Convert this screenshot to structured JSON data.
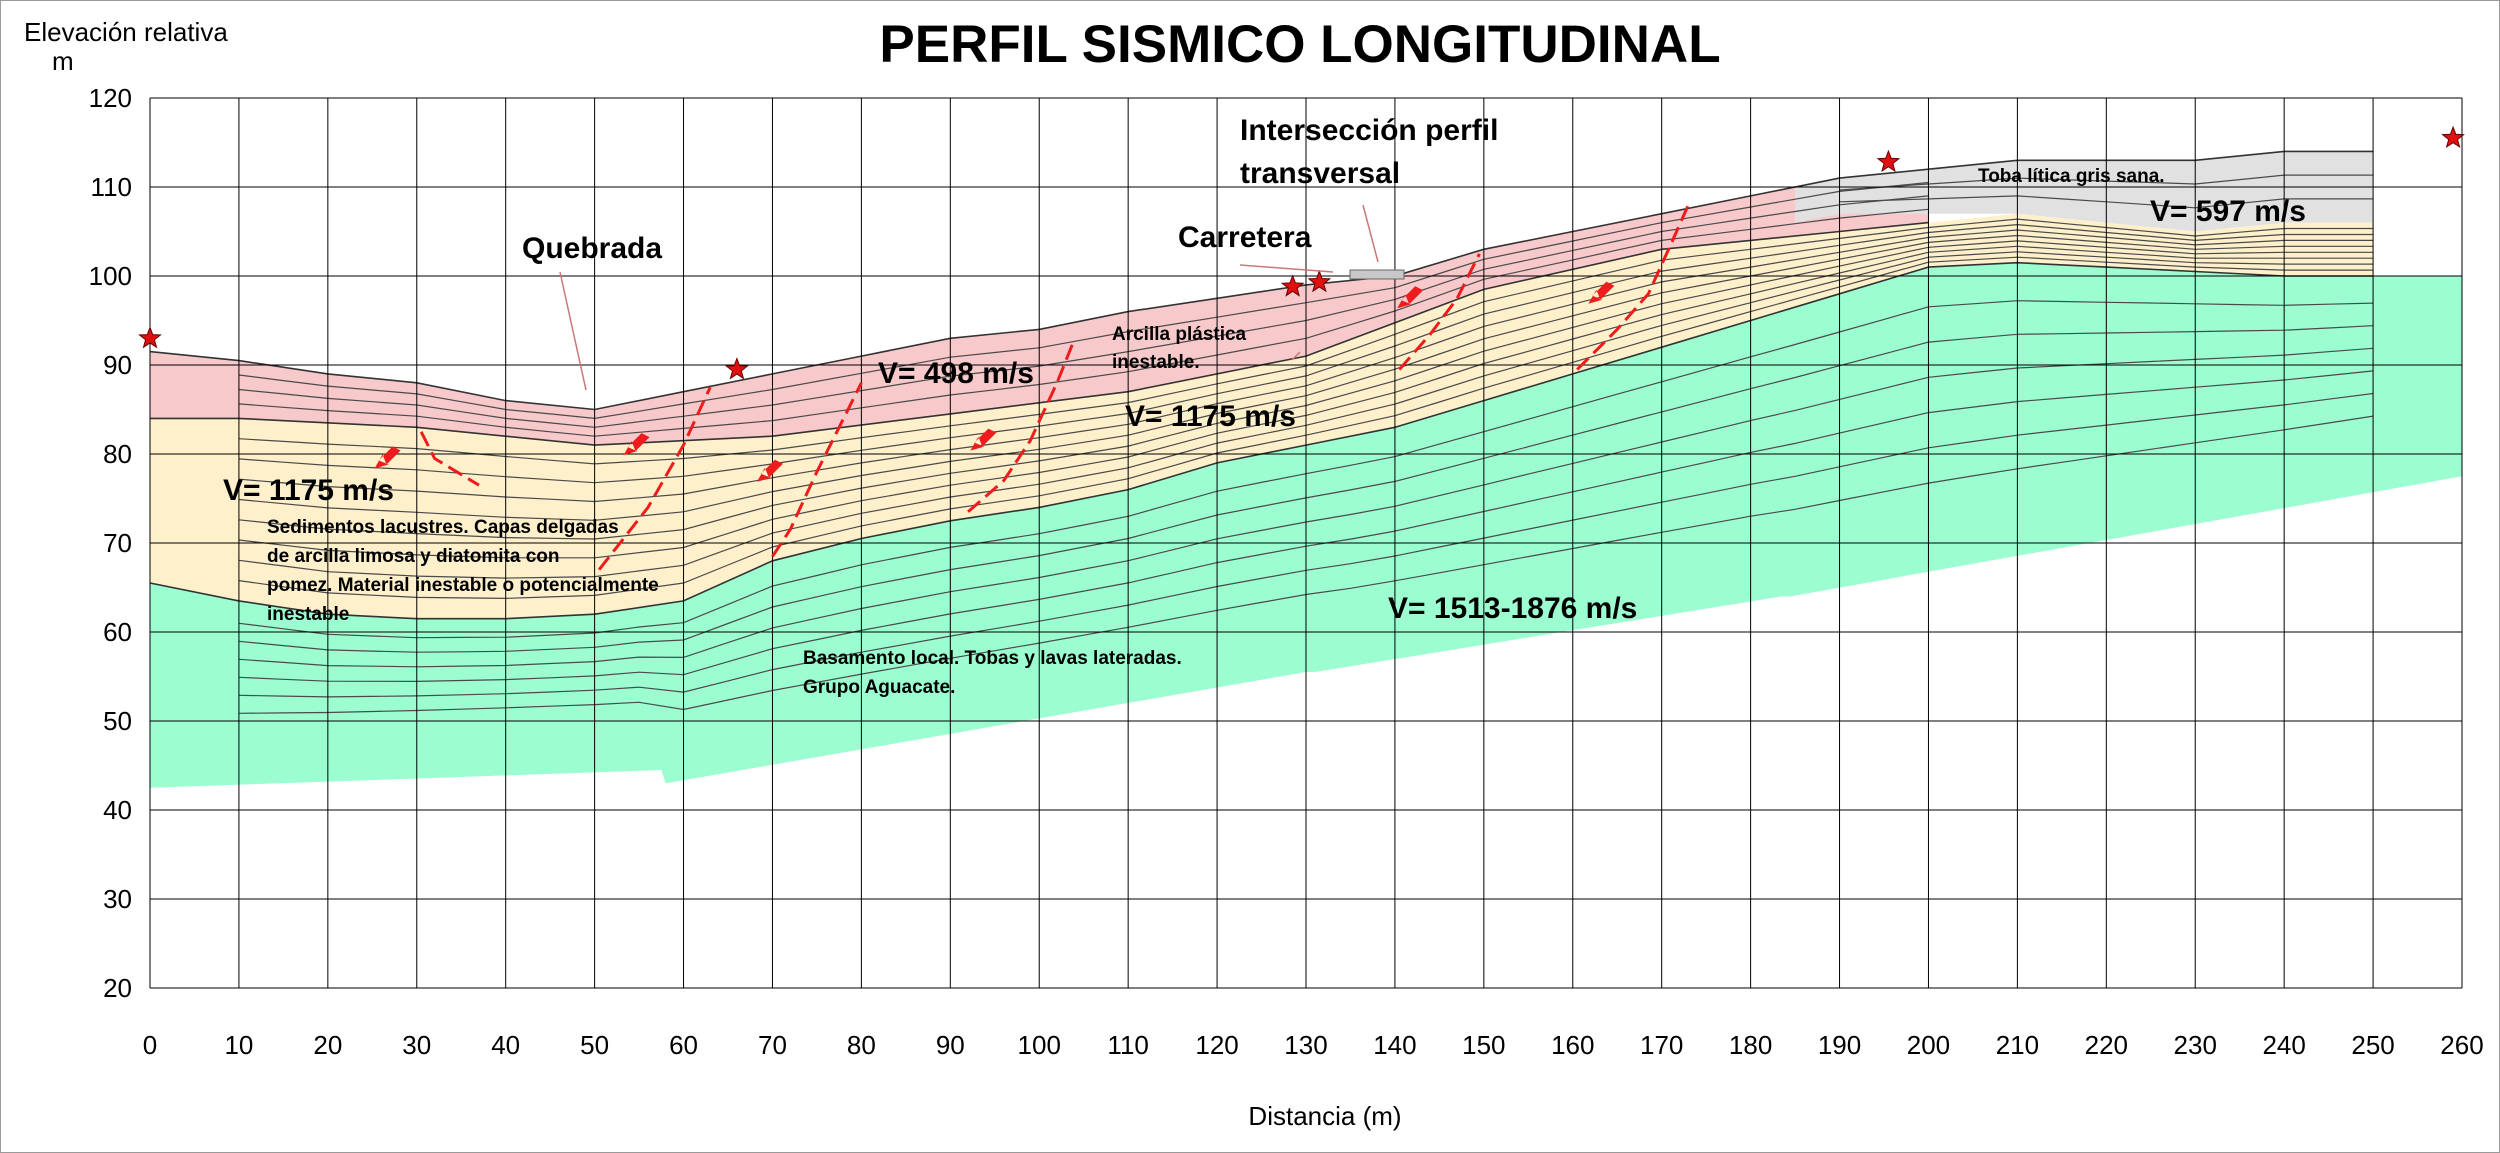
{
  "chart_data": {
    "type": "area",
    "title": "PERFIL SISMICO LONGITUDINAL",
    "ylabel": "Elevación relativa",
    "yunit": "m",
    "xlabel": "Distancia  (m)",
    "xlim": [
      0,
      260
    ],
    "ylim": [
      20,
      120
    ],
    "xticks": [
      0,
      10,
      20,
      30,
      40,
      50,
      60,
      70,
      80,
      90,
      100,
      110,
      120,
      130,
      140,
      150,
      160,
      170,
      180,
      190,
      200,
      210,
      220,
      230,
      240,
      250,
      260
    ],
    "yticks": [
      20,
      30,
      40,
      50,
      60,
      70,
      80,
      90,
      100,
      110,
      120
    ],
    "grid": true,
    "colors": {
      "layer_pink": "#f7c9cb",
      "layer_cream": "#fdf0cb",
      "layer_gray": "#e1e1e1",
      "layer_green": "#9bfdd0",
      "fault": "#ee1c1c",
      "grid": "#000000"
    },
    "surface": {
      "x": [
        0,
        10,
        20,
        30,
        40,
        50,
        60,
        70,
        80,
        90,
        100,
        110,
        120,
        130,
        140,
        150,
        160,
        170,
        180,
        190,
        200,
        210,
        220,
        230,
        240,
        250
      ],
      "y": [
        91.5,
        90.5,
        89,
        88,
        86,
        85,
        87,
        89,
        91,
        93,
        94,
        96,
        97.5,
        99,
        100,
        103,
        105,
        107,
        109,
        111,
        112,
        113,
        113,
        113,
        114,
        114
      ]
    },
    "boundary_pink_cream": {
      "x": [
        0,
        10,
        30,
        50,
        70,
        90,
        110,
        130,
        150,
        170,
        190,
        200
      ],
      "y": [
        84,
        84,
        83,
        81,
        82,
        84.5,
        87,
        91,
        98.5,
        103,
        105,
        106
      ]
    },
    "boundary_gray_cream": {
      "x": [
        185,
        190,
        200,
        210,
        220,
        230,
        240,
        250
      ],
      "y": [
        106,
        107,
        107,
        107,
        106,
        105,
        106,
        106
      ]
    },
    "boundary_cream_green": {
      "x": [
        0,
        10,
        20,
        30,
        40,
        50,
        60,
        70,
        80,
        90,
        100,
        110,
        120,
        130,
        140,
        150,
        160,
        170,
        180,
        190,
        200,
        210,
        220,
        230,
        240,
        250
      ],
      "y": [
        65.5,
        63.5,
        62,
        61.5,
        61.5,
        62,
        63.5,
        68,
        70.5,
        72.5,
        74,
        76,
        79,
        81,
        83,
        86,
        89,
        92,
        95,
        98,
        101,
        101.5,
        101,
        100.5,
        100,
        100
      ]
    },
    "green_bottom": {
      "x": [
        0,
        57.5,
        58,
        130,
        131,
        183.5,
        184.5,
        260
      ],
      "y": [
        42.5,
        44.5,
        43,
        55.5,
        55.5,
        64,
        64,
        77.5
      ]
    },
    "fault_traces": [
      {
        "x": [
          30.5,
          32,
          37
        ],
        "y": [
          82.5,
          79.5,
          76.5
        ]
      },
      {
        "x": [
          50.5,
          56,
          60,
          63
        ],
        "y": [
          67,
          74,
          81,
          87.5
        ]
      },
      {
        "x": [
          70,
          72,
          75,
          78,
          80
        ],
        "y": [
          68.5,
          71.5,
          78,
          84,
          88
        ]
      },
      {
        "x": [
          92,
          96,
          99,
          102,
          104
        ],
        "y": [
          73.5,
          77,
          81.5,
          88,
          93
        ]
      },
      {
        "x": [
          140.5,
          144,
          147,
          149.5
        ],
        "y": [
          89.5,
          93.5,
          97.5,
          102.5
        ]
      },
      {
        "x": [
          160.5,
          165,
          168.5,
          171,
          173
        ],
        "y": [
          89.5,
          94,
          98,
          103.5,
          108
        ]
      }
    ],
    "velocities": [
      {
        "label": "V= 498 m/s"
      },
      {
        "label": "V= 1175 m/s"
      },
      {
        "label": "V= 1175 m/s"
      },
      {
        "label": "V= 1513-1876 m/s"
      },
      {
        "label": "V=  597 m/s"
      }
    ],
    "annotations": {
      "quebrada": "Quebrada",
      "carretera": "Carretera",
      "interseccion_1": "Intersección perfil",
      "interseccion_2": "transversal",
      "arcilla_1": "Arcilla plástica",
      "arcilla_2": "inestable.",
      "toba": "Toba lítica gris sana.",
      "sedimentos_1": "Sedimentos lacustres. Capas delgadas",
      "sedimentos_2": "de arcilla limosa y diatomita con",
      "sedimentos_3": "pomez. Material inestable o potencialmente",
      "sedimentos_4": "inestable",
      "basamento_1": "Basamento local. Tobas y lavas lateradas.",
      "basamento_2": "Grupo Aguacate."
    },
    "geophone_stations": [
      {
        "x": 0,
        "y": 93
      },
      {
        "x": 66,
        "y": 89.5
      },
      {
        "x": 128.5,
        "y": 98.8
      },
      {
        "x": 131.5,
        "y": 99.3
      },
      {
        "x": 195.5,
        "y": 112.8
      },
      {
        "x": 259,
        "y": 115.5
      }
    ]
  }
}
